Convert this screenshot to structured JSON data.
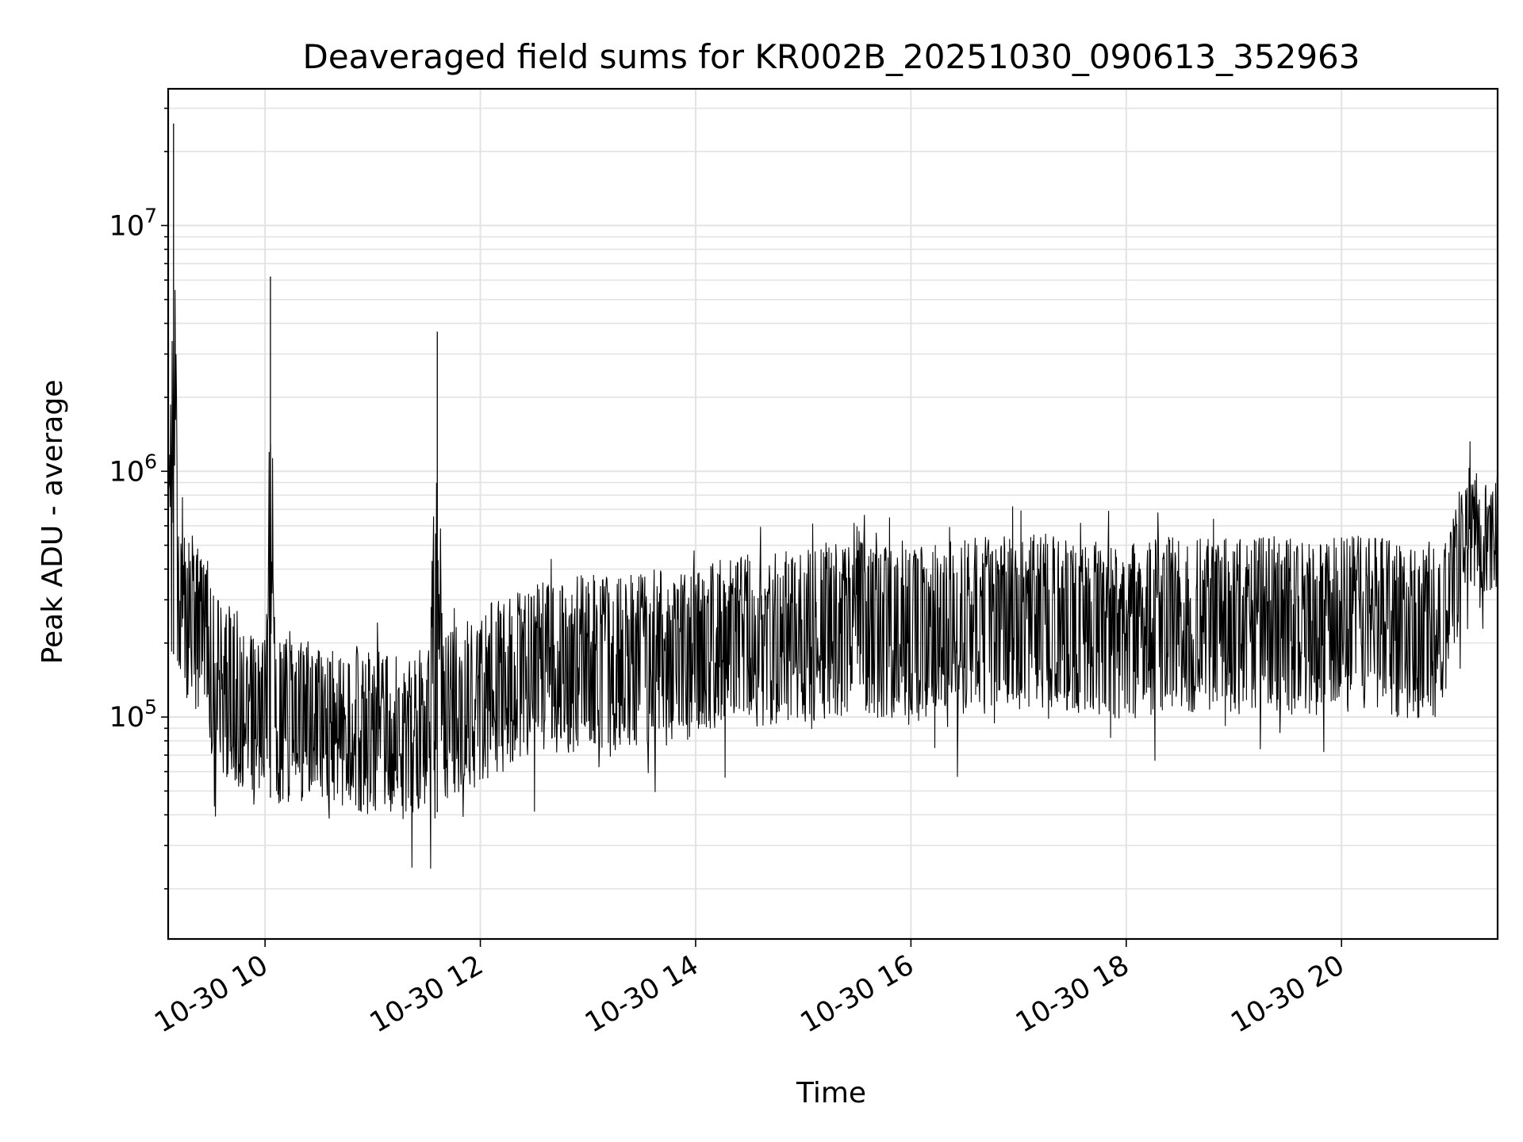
{
  "chart_data": {
    "type": "line",
    "title": "Deaveraged field sums for KR002B_20251030_090613_352963",
    "xlabel": "Time",
    "ylabel": "Peak ADU - average",
    "yscale": "log",
    "grid": true,
    "legend": "none",
    "line_color": "#000000",
    "grid_color": "#e3e3e3",
    "xlim": [
      "2025-10-30 09:06",
      "2025-10-30 21:27"
    ],
    "ylim": [
      12500,
      36000000
    ],
    "x_ticks": [
      {
        "value": "2025-10-30 10:00",
        "label": "10-30 10"
      },
      {
        "value": "2025-10-30 12:00",
        "label": "10-30 12"
      },
      {
        "value": "2025-10-30 14:00",
        "label": "10-30 14"
      },
      {
        "value": "2025-10-30 16:00",
        "label": "10-30 16"
      },
      {
        "value": "2025-10-30 18:00",
        "label": "10-30 18"
      },
      {
        "value": "2025-10-30 20:00",
        "label": "10-30 20"
      }
    ],
    "y_ticks": [
      {
        "value": 100000,
        "base": "10",
        "exp": "5"
      },
      {
        "value": 1000000,
        "base": "10",
        "exp": "6"
      },
      {
        "value": 10000000,
        "base": "10",
        "exp": "7"
      }
    ],
    "series": [
      {
        "x": [
          "2025-10-30 09:06",
          "2025-10-30 09:09",
          "2025-10-30 09:12",
          "2025-10-30 09:15",
          "2025-10-30 09:20",
          "2025-10-30 09:25",
          "2025-10-30 09:30",
          "2025-10-30 09:35",
          "2025-10-30 09:40",
          "2025-10-30 09:45",
          "2025-10-30 09:50",
          "2025-10-30 09:55",
          "2025-10-30 10:00",
          "2025-10-30 10:03",
          "2025-10-30 10:06",
          "2025-10-30 10:10",
          "2025-10-30 10:20",
          "2025-10-30 10:30",
          "2025-10-30 10:40",
          "2025-10-30 10:50",
          "2025-10-30 11:00",
          "2025-10-30 11:10",
          "2025-10-30 11:20",
          "2025-10-30 11:30",
          "2025-10-30 11:36",
          "2025-10-30 11:40",
          "2025-10-30 11:50",
          "2025-10-30 12:00",
          "2025-10-30 12:10",
          "2025-10-30 12:20",
          "2025-10-30 12:30",
          "2025-10-30 12:45",
          "2025-10-30 13:00",
          "2025-10-30 13:15",
          "2025-10-30 13:30",
          "2025-10-30 13:45",
          "2025-10-30 14:00",
          "2025-10-30 14:15",
          "2025-10-30 14:30",
          "2025-10-30 14:45",
          "2025-10-30 15:00",
          "2025-10-30 15:15",
          "2025-10-30 15:30",
          "2025-10-30 15:45",
          "2025-10-30 16:00",
          "2025-10-30 16:15",
          "2025-10-30 16:30",
          "2025-10-30 16:45",
          "2025-10-30 17:00",
          "2025-10-30 17:15",
          "2025-10-30 17:30",
          "2025-10-30 17:45",
          "2025-10-30 18:00",
          "2025-10-30 18:15",
          "2025-10-30 18:30",
          "2025-10-30 18:45",
          "2025-10-30 19:00",
          "2025-10-30 19:15",
          "2025-10-30 19:30",
          "2025-10-30 19:45",
          "2025-10-30 20:00",
          "2025-10-30 20:15",
          "2025-10-30 20:30",
          "2025-10-30 20:45",
          "2025-10-30 21:00",
          "2025-10-30 21:07",
          "2025-10-30 21:12",
          "2025-10-30 21:20",
          "2025-10-30 21:27"
        ],
        "y": [
          400000,
          26000000,
          350000,
          280000,
          260000,
          220000,
          160000,
          150000,
          130000,
          120000,
          110000,
          105000,
          100000,
          6200000,
          110000,
          95000,
          95000,
          90000,
          88000,
          85000,
          82000,
          80000,
          80000,
          85000,
          3700000,
          90000,
          100000,
          110000,
          130000,
          140000,
          150000,
          160000,
          170000,
          160000,
          180000,
          170000,
          190000,
          200000,
          210000,
          215000,
          220000,
          230000,
          240000,
          230000,
          220000,
          230000,
          240000,
          250000,
          250000,
          255000,
          250000,
          245000,
          230000,
          240000,
          250000,
          250000,
          240000,
          250000,
          245000,
          240000,
          250000,
          245000,
          240000,
          235000,
          240000,
          550000,
          600000,
          500000,
          550000
        ],
        "band_low": [
          180000,
          180000,
          140000,
          120000,
          100000,
          90000,
          70000,
          60000,
          55000,
          52000,
          50000,
          48000,
          47000,
          47000,
          45000,
          44000,
          43000,
          42000,
          41000,
          40000,
          40000,
          39000,
          39000,
          40000,
          41000,
          43000,
          48000,
          52000,
          58000,
          62000,
          66000,
          70000,
          74000,
          72000,
          78000,
          76000,
          82000,
          86000,
          90000,
          92000,
          95000,
          98000,
          100000,
          98000,
          96000,
          98000,
          100000,
          104000,
          105000,
          106000,
          104000,
          102000,
          96000,
          100000,
          104000,
          104000,
          100000,
          104000,
          102000,
          100000,
          104000,
          102000,
          100000,
          98000,
          100000,
          320000,
          350000,
          300000,
          320000
        ],
        "band_high": [
          900000,
          900000,
          700000,
          600000,
          520000,
          460000,
          360000,
          320000,
          290000,
          270000,
          250000,
          240000,
          230000,
          230000,
          220000,
          215000,
          210000,
          205000,
          200000,
          195000,
          190000,
          185000,
          185000,
          195000,
          205000,
          220000,
          240000,
          270000,
          310000,
          330000,
          350000,
          370000,
          390000,
          370000,
          410000,
          390000,
          430000,
          450000,
          470000,
          480000,
          490000,
          510000,
          530000,
          510000,
          490000,
          510000,
          530000,
          550000,
          550000,
          560000,
          550000,
          540000,
          510000,
          530000,
          550000,
          550000,
          530000,
          550000,
          540000,
          530000,
          550000,
          540000,
          530000,
          520000,
          530000,
          1000000,
          1050000,
          900000,
          1000000
        ]
      }
    ]
  }
}
